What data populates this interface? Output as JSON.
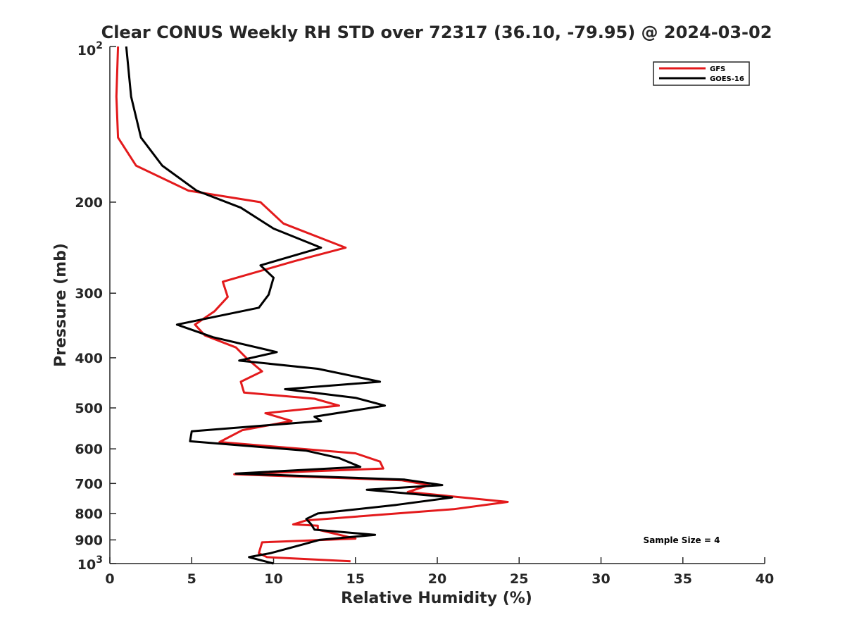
{
  "chart_data": {
    "type": "line",
    "title": "Clear CONUS Weekly RH STD over 72317 (36.10, -79.95) @ 2024-03-02",
    "xlabel": "Relative Humidity (%)",
    "ylabel": "Pressure (mb)",
    "xlim": [
      0,
      40
    ],
    "ylim": [
      100,
      1000
    ],
    "yscale": "log",
    "yreversed": true,
    "grid": false,
    "legend_position": "top-right",
    "x_ticks": [
      "0",
      "5",
      "10",
      "15",
      "20",
      "25",
      "30",
      "35",
      "40"
    ],
    "y_ticks": [
      {
        "value": 200,
        "label": "200"
      },
      {
        "value": 300,
        "label": "300"
      },
      {
        "value": 400,
        "label": "400"
      },
      {
        "value": 500,
        "label": "500"
      },
      {
        "value": 600,
        "label": "600"
      },
      {
        "value": 700,
        "label": "700"
      },
      {
        "value": 800,
        "label": "800"
      },
      {
        "value": 900,
        "label": "900"
      }
    ],
    "y_tick_100": {
      "base": "10",
      "exp": "2"
    },
    "y_tick_1000": {
      "base": "10",
      "exp": "3"
    },
    "annotation": "Sample Size = 4",
    "series": [
      {
        "name": "GFS",
        "color": "#e31a1c",
        "points": [
          [
            0.5,
            100
          ],
          [
            0.4,
            125
          ],
          [
            0.5,
            150
          ],
          [
            1.6,
            170
          ],
          [
            4.8,
            190
          ],
          [
            9.2,
            200
          ],
          [
            10.6,
            220
          ],
          [
            14.4,
            245
          ],
          [
            11.3,
            260
          ],
          [
            6.9,
            285
          ],
          [
            7.2,
            305
          ],
          [
            6.4,
            325
          ],
          [
            5.2,
            345
          ],
          [
            5.8,
            362
          ],
          [
            7.7,
            382
          ],
          [
            8.4,
            402
          ],
          [
            9.3,
            425
          ],
          [
            8.0,
            445
          ],
          [
            8.2,
            467
          ],
          [
            12.5,
            480
          ],
          [
            14.0,
            495
          ],
          [
            9.5,
            512
          ],
          [
            11.1,
            530
          ],
          [
            8.1,
            552
          ],
          [
            6.7,
            582
          ],
          [
            15.0,
            612
          ],
          [
            16.5,
            635
          ],
          [
            16.7,
            655
          ],
          [
            7.6,
            672
          ],
          [
            17.8,
            690
          ],
          [
            19.5,
            705
          ],
          [
            18.2,
            727
          ],
          [
            24.3,
            760
          ],
          [
            21.0,
            785
          ],
          [
            12.0,
            825
          ],
          [
            11.2,
            840
          ],
          [
            12.7,
            845
          ],
          [
            12.7,
            860
          ],
          [
            15.0,
            895
          ],
          [
            9.3,
            910
          ],
          [
            9.1,
            955
          ],
          [
            9.6,
            972
          ],
          [
            14.7,
            990
          ]
        ]
      },
      {
        "name": "GOES-16",
        "color": "#000000",
        "points": [
          [
            1.0,
            100
          ],
          [
            1.3,
            125
          ],
          [
            1.9,
            150
          ],
          [
            3.2,
            170
          ],
          [
            5.3,
            190
          ],
          [
            8.0,
            205
          ],
          [
            10.0,
            225
          ],
          [
            12.9,
            245
          ],
          [
            9.2,
            265
          ],
          [
            10.0,
            280
          ],
          [
            9.7,
            302
          ],
          [
            9.1,
            320
          ],
          [
            4.1,
            345
          ],
          [
            6.3,
            365
          ],
          [
            10.2,
            390
          ],
          [
            7.9,
            405
          ],
          [
            12.7,
            420
          ],
          [
            16.5,
            445
          ],
          [
            10.7,
            460
          ],
          [
            15.0,
            478
          ],
          [
            16.8,
            495
          ],
          [
            12.5,
            520
          ],
          [
            12.9,
            530
          ],
          [
            5.0,
            555
          ],
          [
            4.9,
            580
          ],
          [
            12.0,
            605
          ],
          [
            14.0,
            625
          ],
          [
            15.3,
            650
          ],
          [
            7.7,
            670
          ],
          [
            18.0,
            688
          ],
          [
            20.3,
            705
          ],
          [
            15.7,
            720
          ],
          [
            20.9,
            745
          ],
          [
            17.5,
            770
          ],
          [
            12.7,
            800
          ],
          [
            12.0,
            820
          ],
          [
            12.3,
            840
          ],
          [
            12.5,
            860
          ],
          [
            16.2,
            880
          ],
          [
            12.8,
            900
          ],
          [
            11.7,
            920
          ],
          [
            9.8,
            955
          ],
          [
            8.5,
            972
          ],
          [
            10.0,
            1000
          ]
        ]
      }
    ]
  }
}
